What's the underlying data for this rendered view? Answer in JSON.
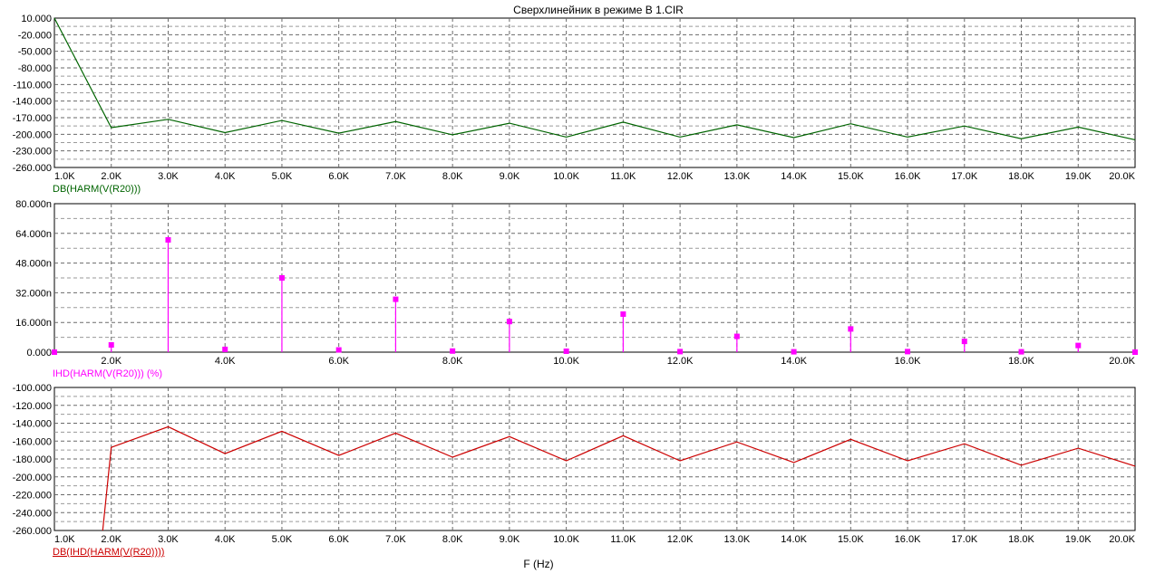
{
  "title": "Сверхлинейник в режиме В 1.CIR",
  "xlabel": "F (Hz)",
  "chart_data": [
    {
      "type": "line",
      "ylabel": "DB(HARM(V(R20)))",
      "color": "#006400",
      "ylim": [
        -260,
        10
      ],
      "yticks": [
        10,
        -20,
        -50,
        -80,
        -110,
        -140,
        -170,
        -200,
        -230,
        -260
      ],
      "ytick_labels": [
        "10.000",
        "-20.000",
        "-50.000",
        "-80.000",
        "-110.000",
        "-140.000",
        "-170.000",
        "-200.000",
        "-230.000",
        "-260.000"
      ],
      "x": [
        1000,
        2000,
        3000,
        4000,
        5000,
        6000,
        7000,
        8000,
        9000,
        10000,
        11000,
        12000,
        13000,
        14000,
        15000,
        16000,
        17000,
        18000,
        19000,
        20000
      ],
      "xtick_labels": [
        "1.0K",
        "2.0K",
        "3.0K",
        "4.0K",
        "5.0K",
        "6.0K",
        "7.0K",
        "8.0K",
        "9.0K",
        "10.0K",
        "11.0K",
        "12.0K",
        "13.0K",
        "14.0K",
        "15.0K",
        "16.0K",
        "17.0K",
        "18.0K",
        "19.0K",
        "20.0K"
      ],
      "values": [
        10,
        -188,
        -173,
        -197,
        -175,
        -198,
        -177,
        -201,
        -180,
        -205,
        -178,
        -205,
        -183,
        -206,
        -181,
        -205,
        -185,
        -208,
        -187,
        -210
      ],
      "grid": true
    },
    {
      "type": "stem",
      "ylabel": "IHD(HARM(V(R20))) (%)",
      "color": "#ff00ff",
      "ylim": [
        0,
        80
      ],
      "yticks": [
        0,
        16,
        32,
        48,
        64,
        80
      ],
      "ytick_labels": [
        "0.000",
        "16.000n",
        "32.000n",
        "48.000n",
        "64.000n",
        "80.000n"
      ],
      "x": [
        1000,
        2000,
        3000,
        4000,
        5000,
        6000,
        7000,
        8000,
        9000,
        10000,
        11000,
        12000,
        13000,
        14000,
        15000,
        16000,
        17000,
        18000,
        19000,
        20000
      ],
      "xtick_labels": [
        "",
        "2.0K",
        "",
        "4.0K",
        "",
        "6.0K",
        "",
        "8.0K",
        "",
        "10.0K",
        "",
        "12.0K",
        "",
        "14.0K",
        "",
        "16.0K",
        "",
        "18.0K",
        "",
        "20.0K"
      ],
      "values": [
        0,
        3.9,
        60.5,
        1.5,
        40.0,
        1.2,
        28.5,
        0.6,
        16.5,
        0.5,
        20.5,
        0.3,
        8.5,
        0.2,
        12.5,
        0.3,
        5.8,
        0.2,
        3.6,
        0
      ],
      "grid": true
    },
    {
      "type": "line",
      "ylabel": "DB(IHD(HARM(V(R20))))",
      "color": "#cc0000",
      "ylim": [
        -260,
        -100
      ],
      "yticks": [
        -100,
        -120,
        -140,
        -160,
        -180,
        -200,
        -220,
        -240,
        -260
      ],
      "ytick_labels": [
        "-100.000",
        "-120.000",
        "-140.000",
        "-160.000",
        "-180.000",
        "-200.000",
        "-220.000",
        "-240.000",
        "-260.000"
      ],
      "x": [
        1850,
        2000,
        3000,
        4000,
        5000,
        6000,
        7000,
        8000,
        9000,
        10000,
        11000,
        12000,
        13000,
        14000,
        15000,
        16000,
        17000,
        18000,
        19000,
        20000
      ],
      "xtick_labels": [
        "1.0K",
        "2.0K",
        "3.0K",
        "4.0K",
        "5.0K",
        "6.0K",
        "7.0K",
        "8.0K",
        "9.0K",
        "10.0K",
        "11.0K",
        "12.0K",
        "13.0K",
        "14.0K",
        "15.0K",
        "16.0K",
        "17.0K",
        "18.0K",
        "19.0K",
        "20.0K"
      ],
      "values": [
        -260,
        -167,
        -144,
        -174,
        -149,
        -176,
        -151,
        -178,
        -155,
        -182,
        -154,
        -182,
        -161,
        -184,
        -158,
        -182,
        -163,
        -187,
        -168,
        -188
      ],
      "grid": true
    }
  ]
}
